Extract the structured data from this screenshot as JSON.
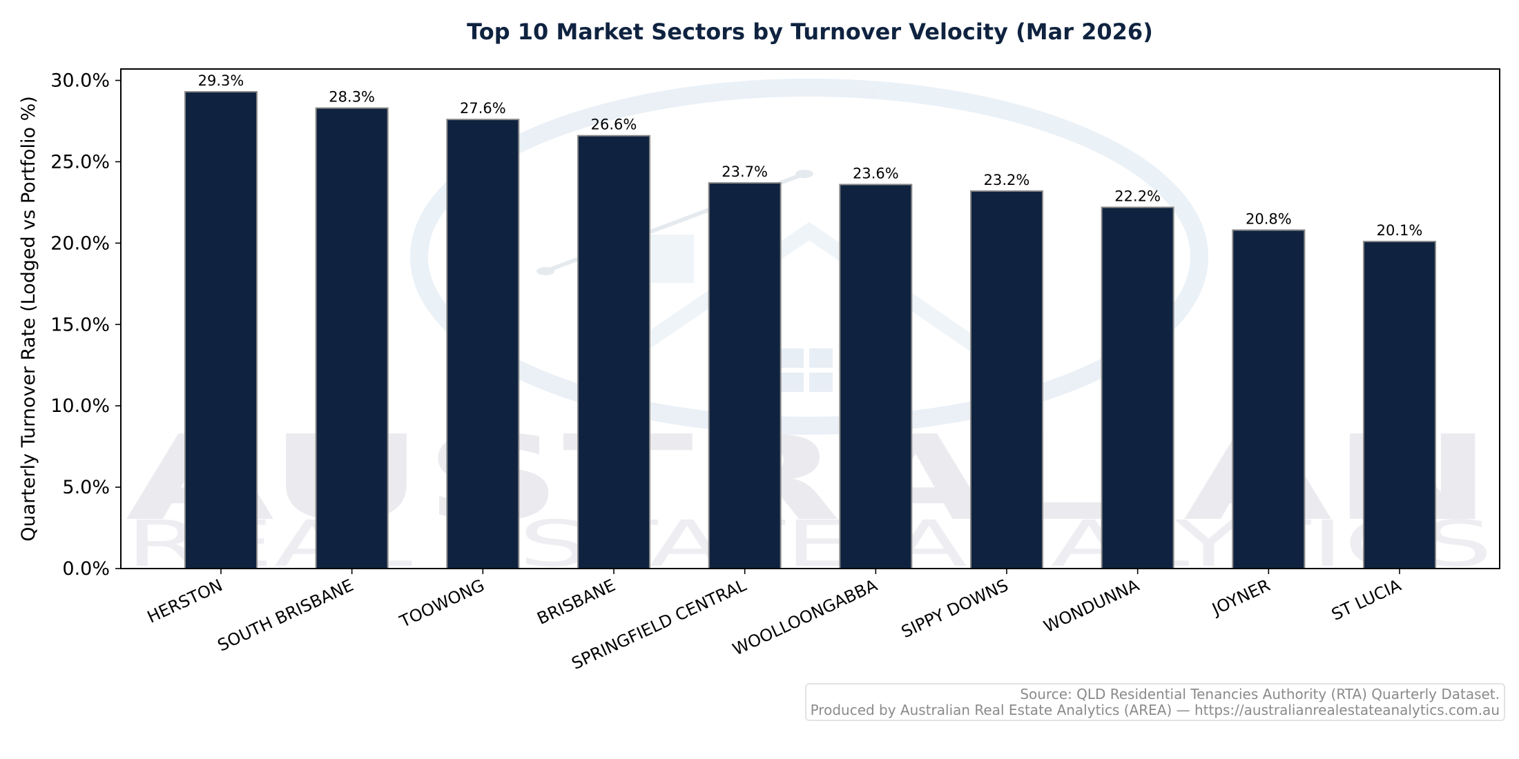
{
  "chart_data": {
    "type": "bar",
    "title": "Top 10 Market Sectors by Turnover Velocity (Mar 2026)",
    "xlabel": "",
    "ylabel": "Quarterly Turnover Rate (Lodged vs Portfolio %)",
    "categories": [
      "HERSTON",
      "SOUTH BRISBANE",
      "TOOWONG",
      "BRISBANE",
      "SPRINGFIELD CENTRAL",
      "WOOLLOONGABBA",
      "SIPPY DOWNS",
      "WONDUNNA",
      "JOYNER",
      "ST LUCIA"
    ],
    "values": [
      29.3,
      28.3,
      27.6,
      26.6,
      23.7,
      23.6,
      23.2,
      22.2,
      20.8,
      20.1
    ],
    "data_labels": [
      "29.3%",
      "28.3%",
      "27.6%",
      "26.6%",
      "23.7%",
      "23.6%",
      "23.2%",
      "22.2%",
      "20.8%",
      "20.1%"
    ],
    "yticks": [
      0,
      5,
      10,
      15,
      20,
      25,
      30
    ],
    "ytick_labels": [
      "0.0%",
      "5.0%",
      "10.0%",
      "15.0%",
      "20.0%",
      "25.0%",
      "30.0%"
    ],
    "ylim": [
      0,
      30.7
    ],
    "grid": false,
    "bar_color": "#0f2340",
    "bar_edge_color": "#8a8a8a"
  },
  "watermark": {
    "line1": "AUSTRALIAN",
    "line2": "REAL ESTATE ANALYTICS"
  },
  "source": {
    "line1": "Source: QLD Residential Tenancies Authority (RTA) Quarterly Dataset.",
    "line2": "Produced by Australian Real Estate Analytics (AREA) — https://australianrealestateanalytics.com.au"
  }
}
